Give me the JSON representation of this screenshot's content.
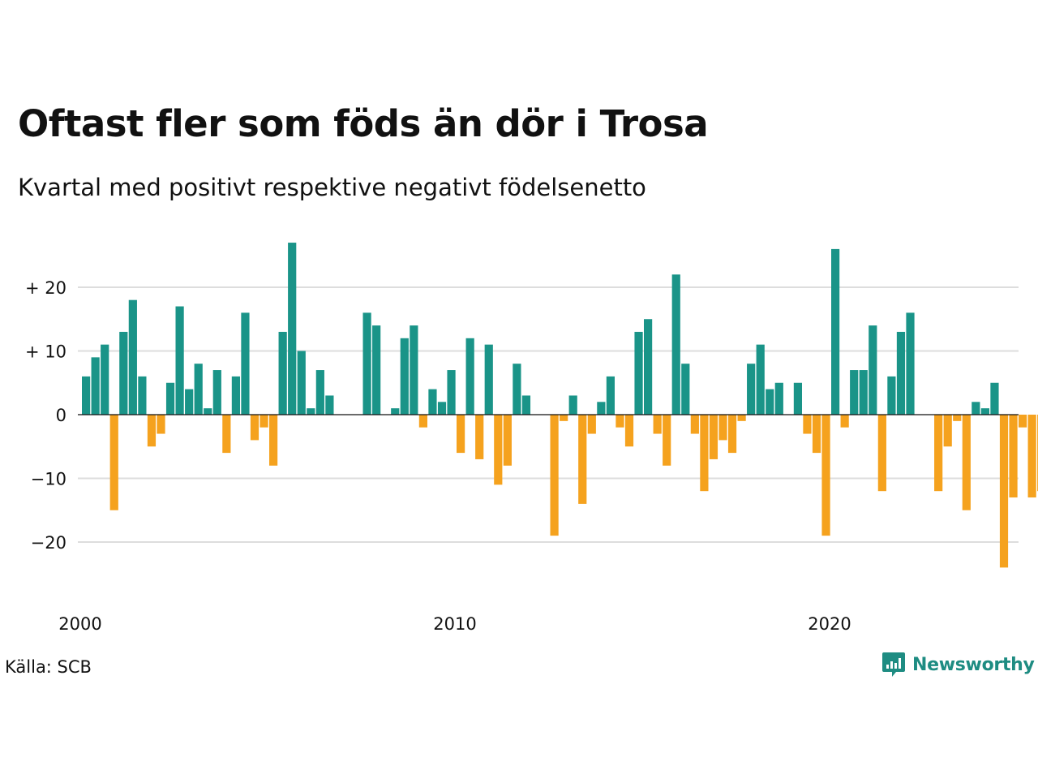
{
  "title": "Oftast fler som föds än dör i Trosa",
  "subtitle": "Kvartal med positivt respektive negativt födelsenetto",
  "source": "Källa: SCB",
  "brand": "Newsworthy",
  "icons": {
    "brand_logo": "bar-chart-speech-bubble-icon"
  },
  "colors": {
    "positive": "#1a9488",
    "negative": "#f5a21e",
    "grid": "#dddddd",
    "zero_line": "#111111"
  },
  "chart_data": {
    "type": "bar",
    "title": "Oftast fler som föds än dör i Trosa",
    "subtitle": "Kvartal med positivt respektive negativt födelsenetto",
    "xlabel": "",
    "ylabel": "",
    "start": "2000Q1",
    "frequency": "quarter",
    "x_ticks": [
      "2000",
      "2010",
      "2020"
    ],
    "y_ticks": [
      20,
      10,
      0,
      -10,
      -20
    ],
    "y_tick_labels": [
      "+ 20",
      "+ 10",
      "0",
      "−10",
      "−20"
    ],
    "ylim": [
      -28,
      30
    ],
    "grid": true,
    "legend": "none",
    "values": [
      6,
      9,
      11,
      -15,
      13,
      18,
      6,
      -5,
      -3,
      5,
      17,
      4,
      8,
      1,
      7,
      -6,
      6,
      16,
      -4,
      -2,
      -8,
      13,
      27,
      10,
      1,
      7,
      3,
      0,
      0,
      0,
      16,
      14,
      0,
      1,
      12,
      14,
      -2,
      4,
      2,
      7,
      -6,
      12,
      -7,
      11,
      -11,
      -8,
      8,
      3,
      0,
      0,
      -19,
      -1,
      3,
      -14,
      -3,
      2,
      6,
      -2,
      -5,
      13,
      15,
      -3,
      -8,
      22,
      8,
      -3,
      -12,
      -7,
      -4,
      -6,
      -1,
      8,
      11,
      4,
      5,
      0,
      5,
      -3,
      -6,
      -19,
      26,
      -2,
      7,
      7,
      14,
      -12,
      6,
      13,
      16,
      0,
      0,
      -12,
      -5,
      -1,
      -15,
      2,
      1,
      5,
      -24,
      -13,
      -2,
      -13,
      -12
    ]
  }
}
